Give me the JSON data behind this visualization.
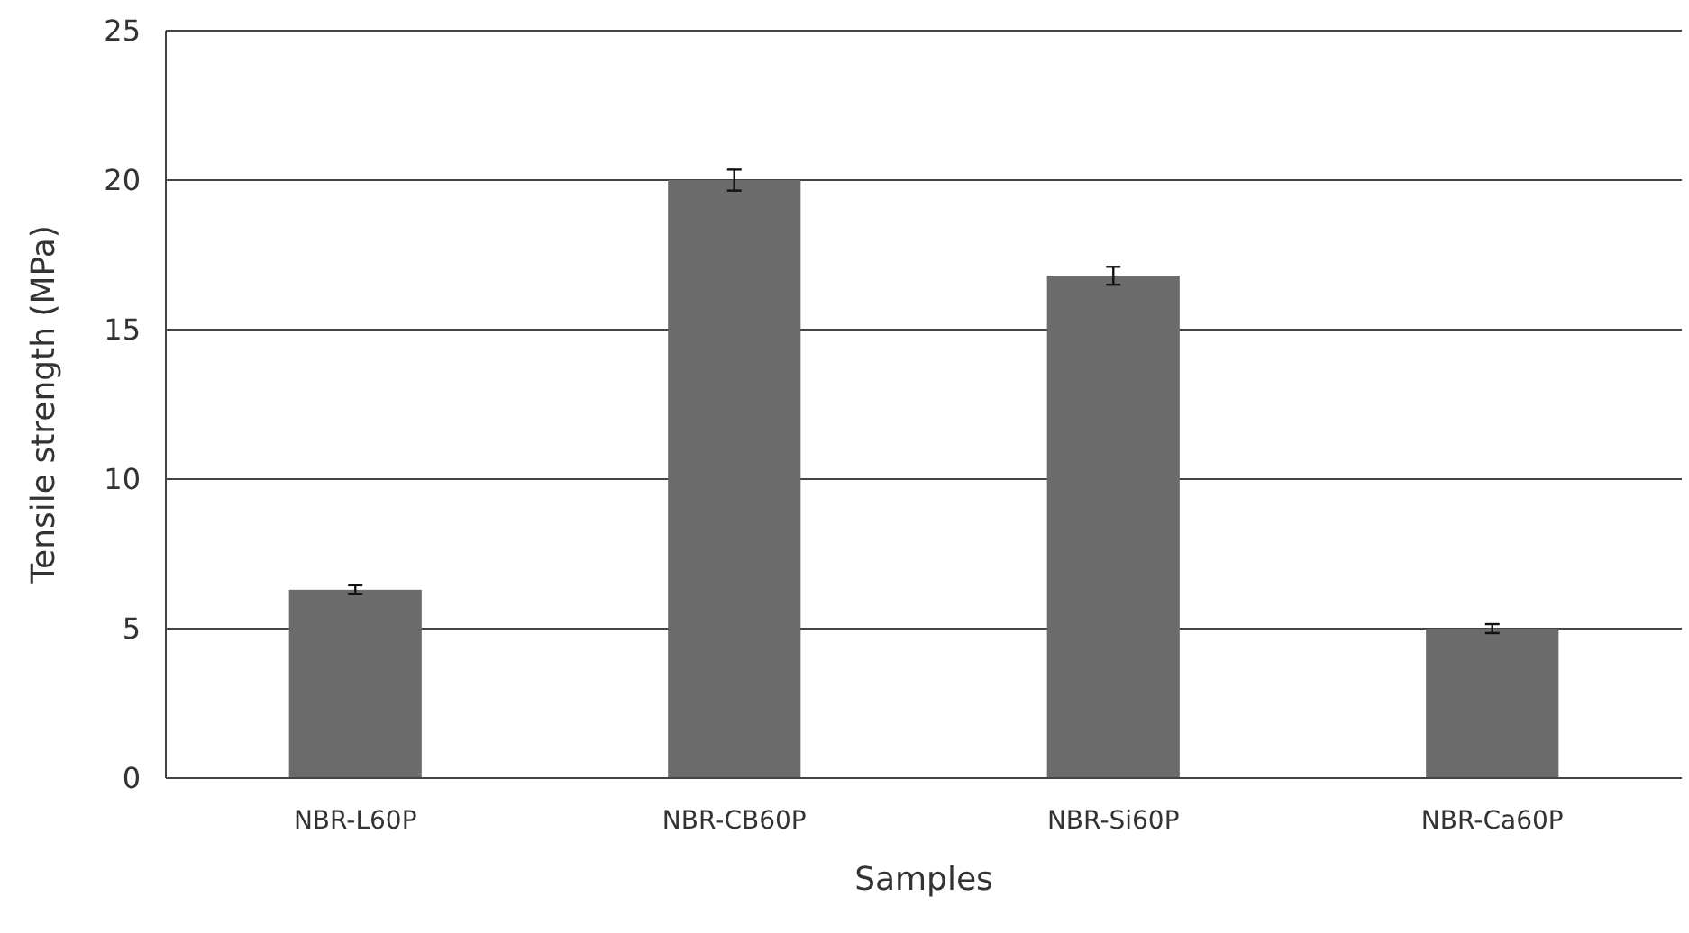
{
  "chart_data": {
    "type": "bar",
    "xlabel": "Samples",
    "ylabel": "Tensile strength (MPa)",
    "categories": [
      "NBR-L60P",
      "NBR-CB60P",
      "NBR-Si60P",
      "NBR-Ca60P"
    ],
    "values": [
      6.3,
      20.0,
      16.8,
      5.0
    ],
    "errors": [
      0.15,
      0.35,
      0.3,
      0.15
    ],
    "color": "#6b6b6b",
    "ylim": [
      0,
      25
    ],
    "yticks": [
      0,
      5,
      10,
      15,
      20,
      25
    ],
    "grid": "y"
  }
}
